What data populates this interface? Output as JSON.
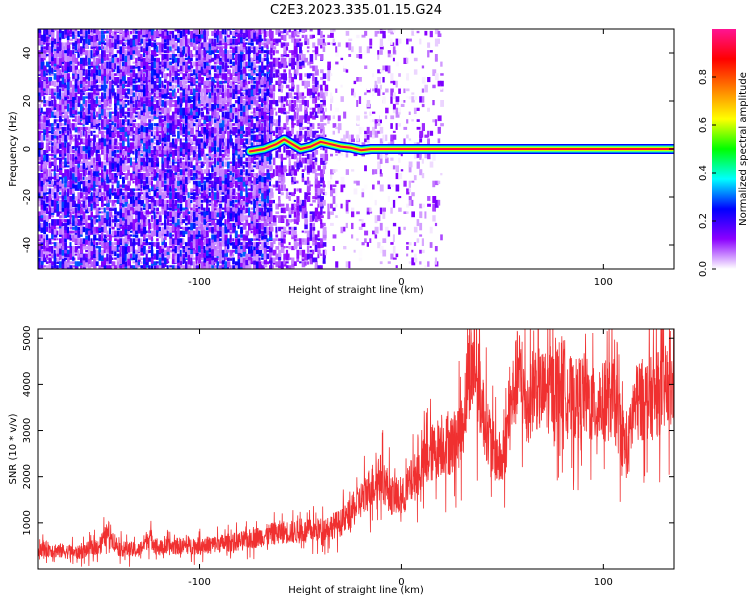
{
  "chart_data": [
    {
      "type": "heatmap",
      "title": "C2E3.2023.335.01.15.G24",
      "xlabel": "Height of straight line (km)",
      "ylabel": "Frequency (Hz)",
      "xlim": [
        -180,
        135
      ],
      "ylim": [
        -50,
        50
      ],
      "x_ticks": [
        -100,
        0,
        100
      ],
      "y_ticks": [
        -40,
        -20,
        0,
        20,
        40
      ],
      "x_tick_labels": [
        "-100",
        "0",
        "100"
      ],
      "y_tick_labels": [
        "-40",
        "-20",
        "0",
        "20",
        "40"
      ],
      "colorbar": {
        "label": "Normalized spectral amplitude",
        "range": [
          0,
          1
        ],
        "ticks": [
          0.0,
          0.2,
          0.4,
          0.6,
          0.8
        ],
        "tick_labels": [
          "0.0",
          "0.2",
          "0.4",
          "0.6",
          "0.8"
        ],
        "colormap": [
          "#ffffff",
          "#8b00ff",
          "#0000ff",
          "#00ffff",
          "#00ff00",
          "#ffff00",
          "#ff8000",
          "#ff0000",
          "#ff1493"
        ]
      },
      "regions": [
        {
          "description": "scattered noise",
          "x_range": [
            -180,
            -65
          ],
          "frequency_range": [
            -50,
            50
          ],
          "amplitude": [
            0.05,
            0.3
          ]
        },
        {
          "description": "sparse noise",
          "x_range": [
            -65,
            -38
          ],
          "frequency_range": [
            -50,
            50
          ],
          "amplitude": [
            0.05,
            0.2
          ]
        },
        {
          "description": "fading noise",
          "x_range": [
            -38,
            20
          ],
          "frequency_range": [
            -50,
            50
          ],
          "amplitude": [
            0.0,
            0.15
          ]
        }
      ],
      "signal_line": {
        "x": [
          -75,
          -68,
          -62,
          -58,
          -54,
          -50,
          -45,
          -40,
          -35,
          -30,
          -25,
          -20,
          -15,
          -10,
          0,
          20,
          60,
          100,
          135
        ],
        "frequency": [
          -1,
          0,
          2,
          4,
          2,
          0,
          1,
          3,
          2,
          1,
          0.5,
          -0.5,
          0,
          0,
          0,
          0,
          0,
          0,
          0
        ],
        "amplitude": [
          0.3,
          0.4,
          0.45,
          0.5,
          0.45,
          0.45,
          0.5,
          0.55,
          0.6,
          0.6,
          0.65,
          0.65,
          0.7,
          0.75,
          0.8,
          0.85,
          0.9,
          0.9,
          0.9
        ]
      }
    },
    {
      "type": "line",
      "xlabel": "Height of straight line (km)",
      "ylabel": "SNR (10 * v/v)",
      "xlim": [
        -180,
        135
      ],
      "ylim": [
        0,
        5200
      ],
      "x_ticks": [
        -100,
        0,
        100
      ],
      "y_ticks": [
        1000,
        2000,
        3000,
        4000,
        5000
      ],
      "x_tick_labels": [
        "-100",
        "0",
        "100"
      ],
      "y_tick_labels": [
        "1000",
        "2000",
        "3000",
        "4000",
        "5000"
      ],
      "color": "#f03030",
      "series": [
        {
          "x": [
            -180,
            -170,
            -160,
            -150,
            -145,
            -140,
            -130,
            -125,
            -120,
            -110,
            -100,
            -90,
            -80,
            -70,
            -60,
            -50,
            -40,
            -30,
            -25,
            -20,
            -15,
            -10,
            -5,
            0,
            5,
            10,
            15,
            20,
            25,
            30,
            33,
            36,
            40,
            45,
            50,
            55,
            58,
            62,
            66,
            70,
            75,
            80,
            85,
            90,
            95,
            100,
            105,
            110,
            112,
            115,
            120,
            125,
            130,
            135
          ],
          "values": [
            450,
            400,
            350,
            500,
            800,
            450,
            400,
            700,
            450,
            500,
            500,
            550,
            600,
            700,
            800,
            800,
            850,
            1000,
            1200,
            1500,
            1800,
            2000,
            1600,
            1500,
            1900,
            2200,
            2500,
            2700,
            2700,
            3000,
            4200,
            4500,
            3500,
            2600,
            2300,
            3700,
            4300,
            3500,
            4000,
            3800,
            3900,
            4100,
            3600,
            3800,
            3500,
            3600,
            3700,
            2800,
            2500,
            3500,
            3700,
            3700,
            3900,
            3900
          ]
        }
      ]
    }
  ]
}
